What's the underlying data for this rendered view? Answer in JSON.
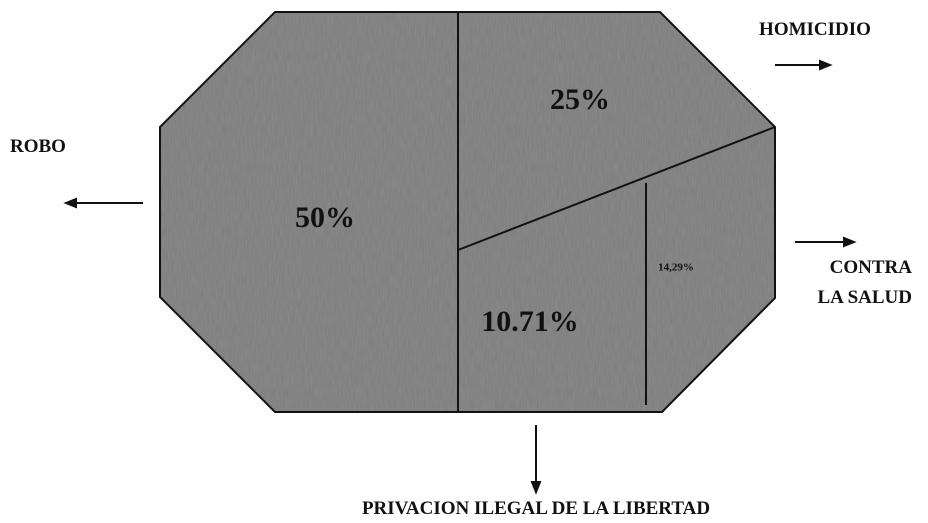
{
  "chart_data": {
    "type": "pie",
    "categories": [
      "ROBO",
      "HOMICIDIO",
      "CONTRA LA SALUD",
      "PRIVACION ILEGAL DE LA LIBERTAD"
    ],
    "values": [
      50,
      25,
      14.29,
      10.71
    ],
    "value_labels": [
      "50%",
      "25%",
      "14,29%",
      "10.71%"
    ],
    "color": "#8c8c8c"
  }
}
